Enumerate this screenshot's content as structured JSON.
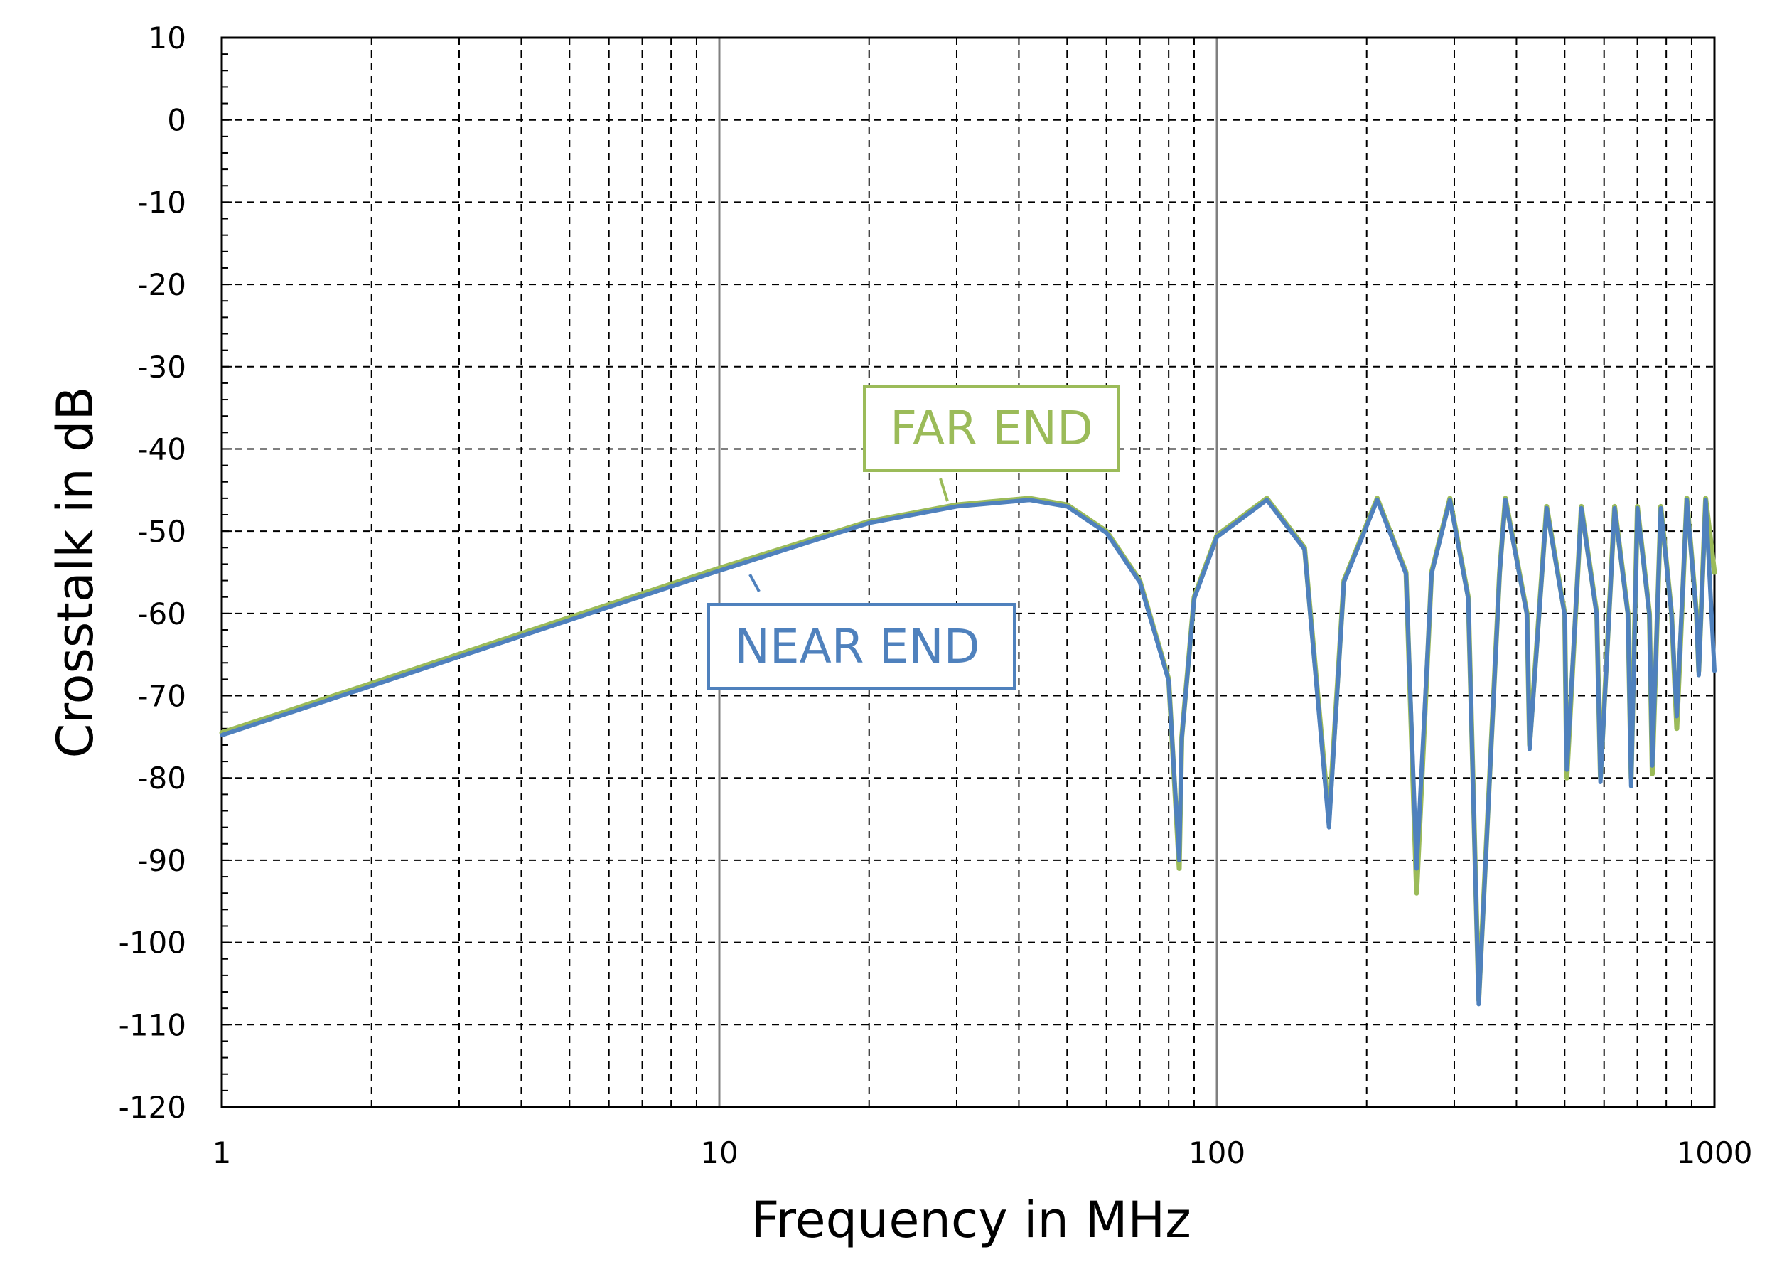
{
  "chart_data": {
    "type": "line",
    "xlabel": "Frequency in MHz",
    "ylabel": "Crosstalk in dB",
    "xscale": "log",
    "xlim": [
      1,
      1000
    ],
    "ylim": [
      -120,
      10
    ],
    "xticks": [
      "1",
      "10",
      "100",
      "1000"
    ],
    "yticks": [
      "10",
      "0",
      "-10",
      "-20",
      "-30",
      "-40",
      "-50",
      "-60",
      "-70",
      "-80",
      "-90",
      "-100",
      "-110",
      "-120"
    ],
    "grid": "on",
    "colors": {
      "far_end": "#9bbb59",
      "near_end": "#4f81bd"
    },
    "series": [
      {
        "name": "FAR END",
        "color": "#9bbb59",
        "x": [
          1,
          2,
          5,
          10,
          20,
          30,
          42,
          50,
          60,
          70,
          80,
          84,
          85,
          90,
          100,
          126,
          150,
          168,
          180,
          210,
          240,
          252,
          270,
          294,
          320,
          336,
          370,
          380,
          420,
          425,
          460,
          500,
          505,
          540,
          580,
          590,
          630,
          670,
          680,
          700,
          740,
          750,
          780,
          820,
          840,
          880,
          920,
          930,
          960,
          1000
        ],
        "y": [
          -74.5,
          -68.5,
          -60.5,
          -54.5,
          -48.8,
          -46.8,
          -46.0,
          -46.8,
          -50.0,
          -56.0,
          -68.0,
          -91.0,
          -75.0,
          -58.0,
          -50.5,
          -46.0,
          -52.0,
          -85.0,
          -56.0,
          -46.0,
          -55.0,
          -94.0,
          -55.0,
          -46.0,
          -58.0,
          -107.0,
          -55.0,
          -46.0,
          -60.0,
          -76.0,
          -47.0,
          -60.0,
          -80.0,
          -47.0,
          -60.0,
          -80.0,
          -47.0,
          -60.0,
          -80.0,
          -47.0,
          -60.0,
          -79.5,
          -47.0,
          -60.0,
          -74.0,
          -46.0,
          -60.0,
          -67.0,
          -46.0,
          -55.0
        ]
      },
      {
        "name": "NEAR END",
        "color": "#4f81bd",
        "x": [
          1,
          2,
          5,
          10,
          20,
          30,
          42,
          50,
          60,
          70,
          80,
          84,
          85,
          90,
          100,
          126,
          150,
          168,
          180,
          210,
          240,
          252,
          270,
          294,
          320,
          336,
          370,
          380,
          420,
          425,
          460,
          500,
          505,
          540,
          580,
          590,
          630,
          670,
          680,
          700,
          740,
          750,
          780,
          820,
          840,
          880,
          920,
          930,
          960,
          1000
        ],
        "y": [
          -74.8,
          -68.8,
          -60.8,
          -54.8,
          -49.0,
          -47.0,
          -46.2,
          -47.0,
          -50.2,
          -56.2,
          -68.2,
          -90.0,
          -75.2,
          -58.2,
          -50.7,
          -46.2,
          -52.2,
          -86.0,
          -56.2,
          -46.2,
          -55.2,
          -91.0,
          -55.2,
          -46.2,
          -58.2,
          -107.5,
          -55.2,
          -46.2,
          -60.2,
          -76.5,
          -47.2,
          -60.2,
          -79.0,
          -47.2,
          -60.2,
          -80.5,
          -47.2,
          -60.2,
          -81.0,
          -47.2,
          -60.2,
          -78.5,
          -47.2,
          -60.2,
          -72.5,
          -46.2,
          -60.2,
          -67.5,
          -46.2,
          -67.0
        ]
      }
    ],
    "annotations": [
      {
        "text": "FAR END",
        "series": "FAR END"
      },
      {
        "text": "NEAR END",
        "series": "NEAR END"
      }
    ]
  }
}
